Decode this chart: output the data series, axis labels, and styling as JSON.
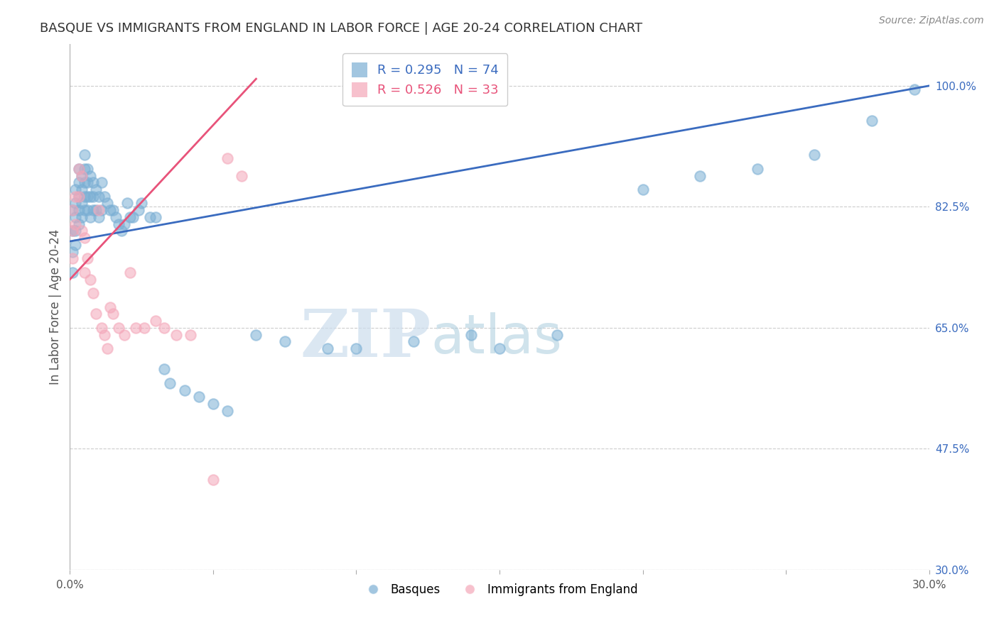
{
  "title": "BASQUE VS IMMIGRANTS FROM ENGLAND IN LABOR FORCE | AGE 20-24 CORRELATION CHART",
  "source": "Source: ZipAtlas.com",
  "ylabel": "In Labor Force | Age 20-24",
  "watermark_zip": "ZIP",
  "watermark_atlas": "atlas",
  "xlim": [
    0.0,
    0.3
  ],
  "ylim": [
    0.3,
    1.06
  ],
  "xtick_positions": [
    0.0,
    0.05,
    0.1,
    0.15,
    0.2,
    0.25,
    0.3
  ],
  "xticklabels": [
    "0.0%",
    "",
    "",
    "",
    "",
    "",
    "30.0%"
  ],
  "ytick_positions": [
    0.3,
    0.475,
    0.65,
    0.825,
    1.0
  ],
  "yticklabels_right": [
    "30.0%",
    "47.5%",
    "65.0%",
    "82.5%",
    "100.0%"
  ],
  "blue_color": "#7BAFD4",
  "pink_color": "#F4A7B9",
  "blue_line_color": "#3A6BBF",
  "pink_line_color": "#E8537A",
  "legend_blue_label": "R = 0.295   N = 74",
  "legend_pink_label": "R = 0.526   N = 33",
  "legend_basques": "Basques",
  "legend_immigrants": "Immigrants from England",
  "grid_color": "#CCCCCC",
  "bg_color": "#FFFFFF",
  "title_color": "#333333",
  "right_tick_color": "#3A6BBF",
  "blue_scatter_x": [
    0.001,
    0.001,
    0.001,
    0.001,
    0.002,
    0.002,
    0.002,
    0.002,
    0.002,
    0.003,
    0.003,
    0.003,
    0.003,
    0.003,
    0.004,
    0.004,
    0.004,
    0.004,
    0.005,
    0.005,
    0.005,
    0.005,
    0.005,
    0.006,
    0.006,
    0.006,
    0.006,
    0.007,
    0.007,
    0.007,
    0.008,
    0.008,
    0.008,
    0.009,
    0.009,
    0.01,
    0.01,
    0.011,
    0.011,
    0.012,
    0.013,
    0.014,
    0.015,
    0.016,
    0.017,
    0.018,
    0.019,
    0.02,
    0.021,
    0.022,
    0.024,
    0.025,
    0.028,
    0.03,
    0.033,
    0.035,
    0.04,
    0.045,
    0.05,
    0.055,
    0.065,
    0.075,
    0.09,
    0.1,
    0.12,
    0.14,
    0.15,
    0.17,
    0.2,
    0.22,
    0.24,
    0.26,
    0.28,
    0.295
  ],
  "blue_scatter_y": [
    0.82,
    0.79,
    0.76,
    0.73,
    0.85,
    0.83,
    0.81,
    0.79,
    0.77,
    0.88,
    0.86,
    0.84,
    0.82,
    0.8,
    0.87,
    0.85,
    0.83,
    0.81,
    0.9,
    0.88,
    0.86,
    0.84,
    0.82,
    0.88,
    0.86,
    0.84,
    0.82,
    0.87,
    0.84,
    0.81,
    0.86,
    0.84,
    0.82,
    0.85,
    0.82,
    0.84,
    0.81,
    0.86,
    0.82,
    0.84,
    0.83,
    0.82,
    0.82,
    0.81,
    0.8,
    0.79,
    0.8,
    0.83,
    0.81,
    0.81,
    0.82,
    0.83,
    0.81,
    0.81,
    0.59,
    0.57,
    0.56,
    0.55,
    0.54,
    0.53,
    0.64,
    0.63,
    0.62,
    0.62,
    0.63,
    0.64,
    0.62,
    0.64,
    0.85,
    0.87,
    0.88,
    0.9,
    0.95,
    0.995
  ],
  "pink_scatter_x": [
    0.001,
    0.001,
    0.001,
    0.002,
    0.002,
    0.003,
    0.003,
    0.004,
    0.004,
    0.005,
    0.005,
    0.006,
    0.007,
    0.008,
    0.009,
    0.01,
    0.011,
    0.012,
    0.013,
    0.014,
    0.015,
    0.017,
    0.019,
    0.021,
    0.023,
    0.026,
    0.03,
    0.033,
    0.037,
    0.042,
    0.05,
    0.055,
    0.06
  ],
  "pink_scatter_y": [
    0.82,
    0.79,
    0.75,
    0.84,
    0.8,
    0.88,
    0.84,
    0.87,
    0.79,
    0.78,
    0.73,
    0.75,
    0.72,
    0.7,
    0.67,
    0.82,
    0.65,
    0.64,
    0.62,
    0.68,
    0.67,
    0.65,
    0.64,
    0.73,
    0.65,
    0.65,
    0.66,
    0.65,
    0.64,
    0.64,
    0.43,
    0.895,
    0.87
  ],
  "blue_trendline_x": [
    0.0,
    0.3
  ],
  "blue_trendline_y": [
    0.775,
    1.0
  ],
  "pink_trendline_x": [
    0.0,
    0.065
  ],
  "pink_trendline_y": [
    0.72,
    1.01
  ]
}
